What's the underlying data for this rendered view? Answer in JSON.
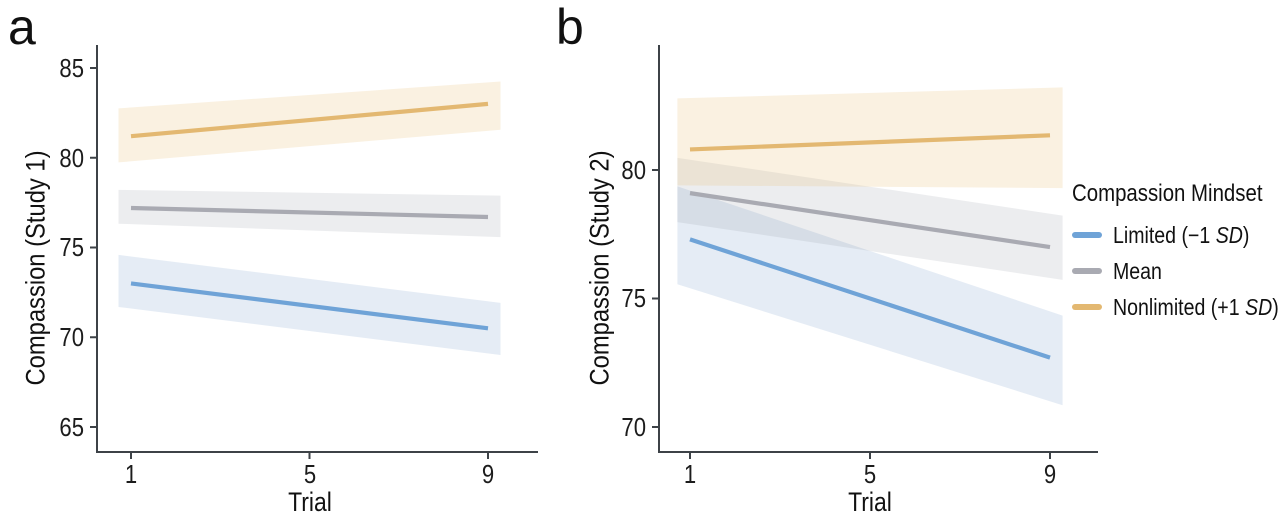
{
  "figure": {
    "panels": [
      {
        "panel_letter": "a"
      },
      {
        "panel_letter": "b"
      }
    ],
    "legend": {
      "title": "Compassion Mindset",
      "entries": [
        {
          "pre": "Limited (−1 ",
          "italic": "SD",
          "post": ")",
          "color": "#6FA3D7"
        },
        {
          "pre": "Mean",
          "italic": "",
          "post": "",
          "color": "#A9AAB2"
        },
        {
          "pre": "Nonlimited (+1 ",
          "italic": "SD",
          "post": ")",
          "color": "#E3B871"
        }
      ]
    }
  },
  "colors": {
    "axis": "#3d4247",
    "text": "#1c1c1c",
    "background": "#ffffff",
    "limited_line": "#6FA3D7",
    "mean_line": "#A9AAB2",
    "nonlimited_line": "#E3B871"
  },
  "chart_data": [
    {
      "type": "line",
      "panel": "a",
      "title": "",
      "xlabel": "Trial",
      "ylabel": "Compassion (Study 1)",
      "x": [
        1,
        9
      ],
      "x_ticks": [
        1,
        5,
        9
      ],
      "y_ticks": [
        65,
        70,
        75,
        80,
        85
      ],
      "xlim": [
        0.25,
        10.1
      ],
      "ylim": [
        63.6,
        86.3
      ],
      "grid": false,
      "legend_position": "none",
      "series": [
        {
          "id": "limited",
          "name": "Limited (−1 SD)",
          "color": "#6FA3D7",
          "band_color": "rgba(125,161,203,0.20)",
          "values": [
            73.0,
            70.5
          ],
          "ci_lower": [
            71.6,
            69.1
          ],
          "ci_upper": [
            74.5,
            72.0
          ]
        },
        {
          "id": "mean",
          "name": "Mean",
          "color": "#A9AAB2",
          "band_color": "rgba(150,153,168,0.18)",
          "values": [
            77.2,
            76.7
          ],
          "ci_lower": [
            76.3,
            75.6
          ],
          "ci_upper": [
            78.2,
            77.9
          ]
        },
        {
          "id": "nonlimited",
          "name": "Nonlimited (+1 SD)",
          "color": "#E3B871",
          "band_color": "rgba(233,197,128,0.24)",
          "values": [
            81.2,
            83.0
          ],
          "ci_lower": [
            79.8,
            81.5
          ],
          "ci_upper": [
            82.8,
            84.2
          ]
        }
      ]
    },
    {
      "type": "line",
      "panel": "b",
      "title": "",
      "xlabel": "Trial",
      "ylabel": "Compassion (Study 2)",
      "x": [
        1,
        9
      ],
      "x_ticks": [
        1,
        5,
        9
      ],
      "y_ticks": [
        70,
        75,
        80
      ],
      "xlim": [
        0.3,
        10.05
      ],
      "ylim": [
        69.0,
        84.9
      ],
      "grid": false,
      "legend_position": "right",
      "series": [
        {
          "id": "limited",
          "name": "Limited (−1 SD)",
          "color": "#6FA3D7",
          "band_color": "rgba(125,161,203,0.20)",
          "values": [
            77.3,
            72.7
          ],
          "ci_lower": [
            75.4,
            71.0
          ],
          "ci_upper": [
            79.2,
            74.5
          ]
        },
        {
          "id": "mean",
          "name": "Mean",
          "color": "#A9AAB2",
          "band_color": "rgba(150,153,168,0.18)",
          "values": [
            79.1,
            77.0
          ],
          "ci_lower": [
            77.9,
            75.8
          ],
          "ci_upper": [
            80.4,
            78.3
          ]
        },
        {
          "id": "nonlimited",
          "name": "Nonlimited (+1 SD)",
          "color": "#E3B871",
          "band_color": "rgba(233,197,128,0.24)",
          "values": [
            80.8,
            81.35
          ],
          "ci_lower": [
            79.4,
            79.3
          ],
          "ci_upper": [
            82.8,
            83.2
          ]
        }
      ]
    }
  ]
}
